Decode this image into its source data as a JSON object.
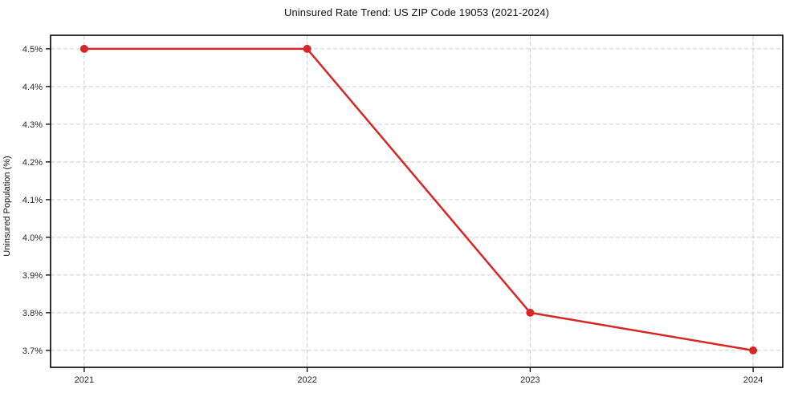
{
  "chart_data": {
    "type": "line",
    "title": "Uninsured Rate Trend: US ZIP Code 19053 (2021-2024)",
    "xlabel": "",
    "ylabel": "Uninsured Population (%)",
    "x": [
      2021,
      2022,
      2023,
      2024
    ],
    "x_tick_labels": [
      "2021",
      "2022",
      "2023",
      "2024"
    ],
    "series": [
      {
        "name": "Uninsured rate",
        "values": [
          4.5,
          4.5,
          3.8,
          3.7
        ]
      }
    ],
    "y_ticks": [
      3.7,
      3.8,
      3.9,
      4.0,
      4.1,
      4.2,
      4.3,
      4.4,
      4.5
    ],
    "y_tick_labels": [
      "3.7%",
      "3.8%",
      "3.9%",
      "4.0%",
      "4.1%",
      "4.2%",
      "4.3%",
      "4.4%",
      "4.5%"
    ],
    "ylim": [
      3.655,
      4.536
    ],
    "xlim": [
      2020.849,
      2024.133
    ],
    "grid": true,
    "grid_style": "dashed",
    "legend_position": "none",
    "line_color": "#d62728",
    "marker": "circle",
    "marker_radius": 5,
    "line_width": 2.5,
    "grid_color": "#cccccc",
    "axis_color": "#000000",
    "tick_color": "#262626",
    "background_color": "#ffffff"
  }
}
